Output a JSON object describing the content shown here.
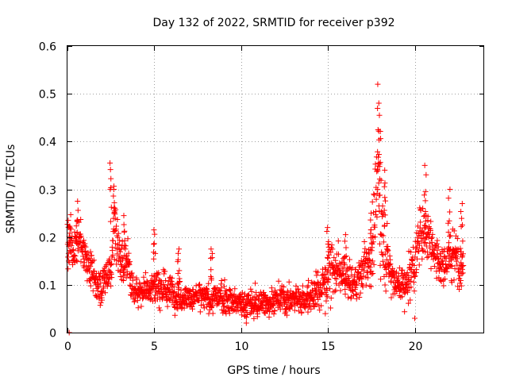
{
  "chart_data": {
    "type": "scatter",
    "title": "Day 132 of 2022, SRMTID for receiver p392",
    "xlabel": "GPS time / hours",
    "ylabel": "SRMTID / TECUs",
    "xlim": [
      0,
      24
    ],
    "ylim": [
      0,
      0.6
    ],
    "x_ticks": [
      0,
      5,
      10,
      15,
      20
    ],
    "x_tick_labels": [
      "0",
      "5",
      "10",
      "15",
      "20"
    ],
    "y_ticks": [
      0,
      0.1,
      0.2,
      0.3,
      0.4,
      0.5,
      0.6
    ],
    "y_tick_labels": [
      "0",
      "0.1",
      "0.2",
      "0.3",
      "0.4",
      "0.5",
      "0.6"
    ],
    "grid": true,
    "marker": "plus",
    "series_color": "#ff0000",
    "envelope": {
      "description": "approximate typical SRMTID level and spread over the day",
      "x": [
        0,
        0.3,
        0.6,
        1.0,
        1.5,
        2.0,
        2.5,
        2.7,
        3.0,
        3.5,
        3.8,
        4.2,
        5.0,
        6.0,
        7.0,
        8.0,
        9.0,
        10.0,
        11.0,
        12.0,
        13.0,
        14.0,
        14.8,
        15.2,
        16.0,
        16.5,
        17.0,
        17.5,
        17.9,
        18.2,
        18.5,
        19.0,
        19.5,
        20.0,
        20.5,
        21.0,
        21.5,
        22.0,
        22.5,
        22.8
      ],
      "mean": [
        0.19,
        0.17,
        0.2,
        0.17,
        0.11,
        0.1,
        0.14,
        0.24,
        0.15,
        0.15,
        0.08,
        0.09,
        0.1,
        0.085,
        0.075,
        0.07,
        0.075,
        0.06,
        0.06,
        0.07,
        0.07,
        0.075,
        0.1,
        0.14,
        0.11,
        0.1,
        0.13,
        0.17,
        0.3,
        0.2,
        0.14,
        0.1,
        0.1,
        0.15,
        0.23,
        0.19,
        0.14,
        0.16,
        0.16,
        0.14
      ],
      "spread": [
        0.05,
        0.04,
        0.04,
        0.04,
        0.03,
        0.035,
        0.05,
        0.07,
        0.04,
        0.04,
        0.025,
        0.025,
        0.035,
        0.03,
        0.025,
        0.025,
        0.03,
        0.025,
        0.025,
        0.025,
        0.025,
        0.03,
        0.04,
        0.05,
        0.03,
        0.03,
        0.04,
        0.06,
        0.13,
        0.07,
        0.04,
        0.03,
        0.04,
        0.05,
        0.06,
        0.05,
        0.04,
        0.05,
        0.05,
        0.03
      ]
    },
    "peaks": [
      {
        "x": 0.1,
        "y": 0.235
      },
      {
        "x": 0.55,
        "y": 0.275
      },
      {
        "x": 2.5,
        "y": 0.355
      },
      {
        "x": 2.7,
        "y": 0.3
      },
      {
        "x": 3.3,
        "y": 0.245
      },
      {
        "x": 5.0,
        "y": 0.215
      },
      {
        "x": 6.4,
        "y": 0.175
      },
      {
        "x": 8.3,
        "y": 0.175
      },
      {
        "x": 15.0,
        "y": 0.22
      },
      {
        "x": 16.0,
        "y": 0.205
      },
      {
        "x": 17.5,
        "y": 0.25
      },
      {
        "x": 17.9,
        "y": 0.52
      },
      {
        "x": 18.0,
        "y": 0.455
      },
      {
        "x": 18.3,
        "y": 0.34
      },
      {
        "x": 20.6,
        "y": 0.35
      },
      {
        "x": 22.0,
        "y": 0.3
      },
      {
        "x": 22.7,
        "y": 0.27
      }
    ],
    "lows": [
      {
        "x": 0.1,
        "y": 0.0
      },
      {
        "x": 10.3,
        "y": 0.02
      },
      {
        "x": 20.0,
        "y": 0.03
      }
    ]
  }
}
